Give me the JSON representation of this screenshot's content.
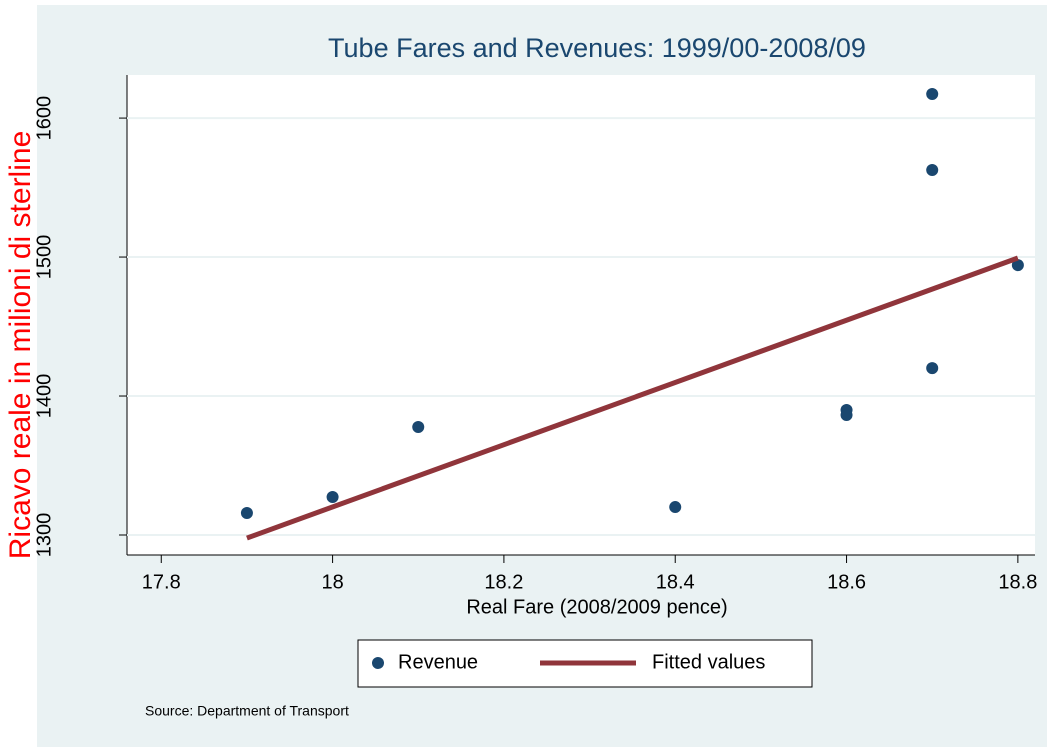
{
  "chart_data": {
    "type": "scatter",
    "title": "Tube Fares and Revenues: 1999/00-2008/09",
    "x_label": "Real Fare (2008/2009 pence)",
    "y_label": "Ricavo reale in milioni di sterline",
    "source": "Source: Department of Transport",
    "xlim": [
      17.76,
      18.82
    ],
    "ylim": [
      1285.6,
      1631
    ],
    "xticks": [
      17.8,
      18,
      18.2,
      18.4,
      18.6,
      18.8
    ],
    "yticks": [
      1300,
      1400,
      1500,
      1600
    ],
    "grid": true,
    "legend": "bottom",
    "series": [
      {
        "name": "Revenue",
        "type": "scatter",
        "color": "#1a476f",
        "x": [
          17.9,
          18.0,
          18.1,
          18.4,
          18.6,
          18.6,
          18.7,
          18.7,
          18.7,
          18.8
        ],
        "values": [
          1315.8,
          1327.3,
          1377.7,
          1320.1,
          1389.9,
          1386.3,
          1420.1,
          1562.6,
          1617.3,
          1494.2
        ]
      },
      {
        "name": "Fitted values",
        "type": "line",
        "color": "#90353b",
        "x": [
          17.9,
          18.8
        ],
        "values": [
          1297.8,
          1499.3
        ]
      }
    ]
  }
}
